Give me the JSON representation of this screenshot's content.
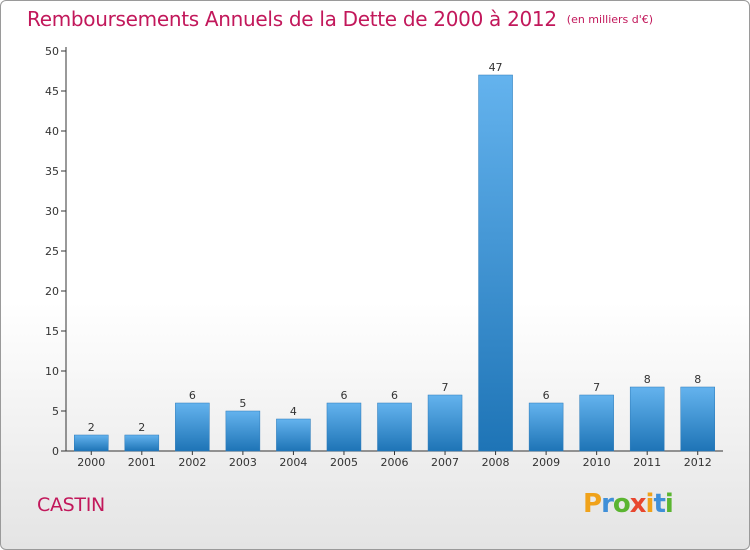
{
  "header": {
    "title": "Remboursements Annuels de la Dette de 2000 à 2012",
    "unit": "(en milliers d'€)"
  },
  "footer": {
    "commune": "CASTIN",
    "brand": "Proxiti"
  },
  "colors": {
    "title": "#c2185b",
    "bar_top": "#64b3ee",
    "bar_bottom": "#1e74b6"
  },
  "chart_data": {
    "type": "bar",
    "title": "Remboursements Annuels de la Dette de 2000 à 2012",
    "subtitle": "(en milliers d'€)",
    "categories": [
      "2000",
      "2001",
      "2002",
      "2003",
      "2004",
      "2005",
      "2006",
      "2007",
      "2008",
      "2009",
      "2010",
      "2011",
      "2012"
    ],
    "values": [
      2,
      2,
      6,
      5,
      4,
      6,
      6,
      7,
      47,
      6,
      7,
      8,
      8
    ],
    "ylim": [
      0,
      50
    ],
    "yticks": [
      0,
      5,
      10,
      15,
      20,
      25,
      30,
      35,
      40,
      45,
      50
    ],
    "grid": false,
    "legend": "none"
  }
}
